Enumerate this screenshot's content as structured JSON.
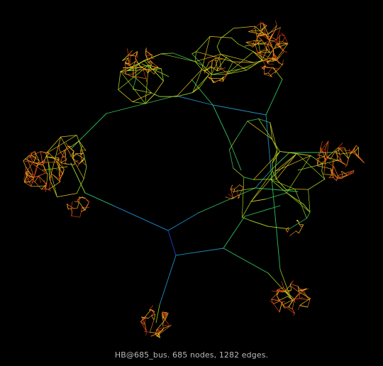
{
  "caption": "HB@685_bus. 685 nodes, 1282 edges.",
  "graph": {
    "name": "HB@685_bus",
    "node_count": 685,
    "edge_count": 1282
  },
  "colors": {
    "background": "#000000",
    "caption_text": "#b8b8b8",
    "edge_gradient": [
      "#1f3fd0",
      "#1f8fc0",
      "#2fbf5f",
      "#9fcf1f",
      "#e8c01f",
      "#e8701f",
      "#d83a12"
    ]
  }
}
